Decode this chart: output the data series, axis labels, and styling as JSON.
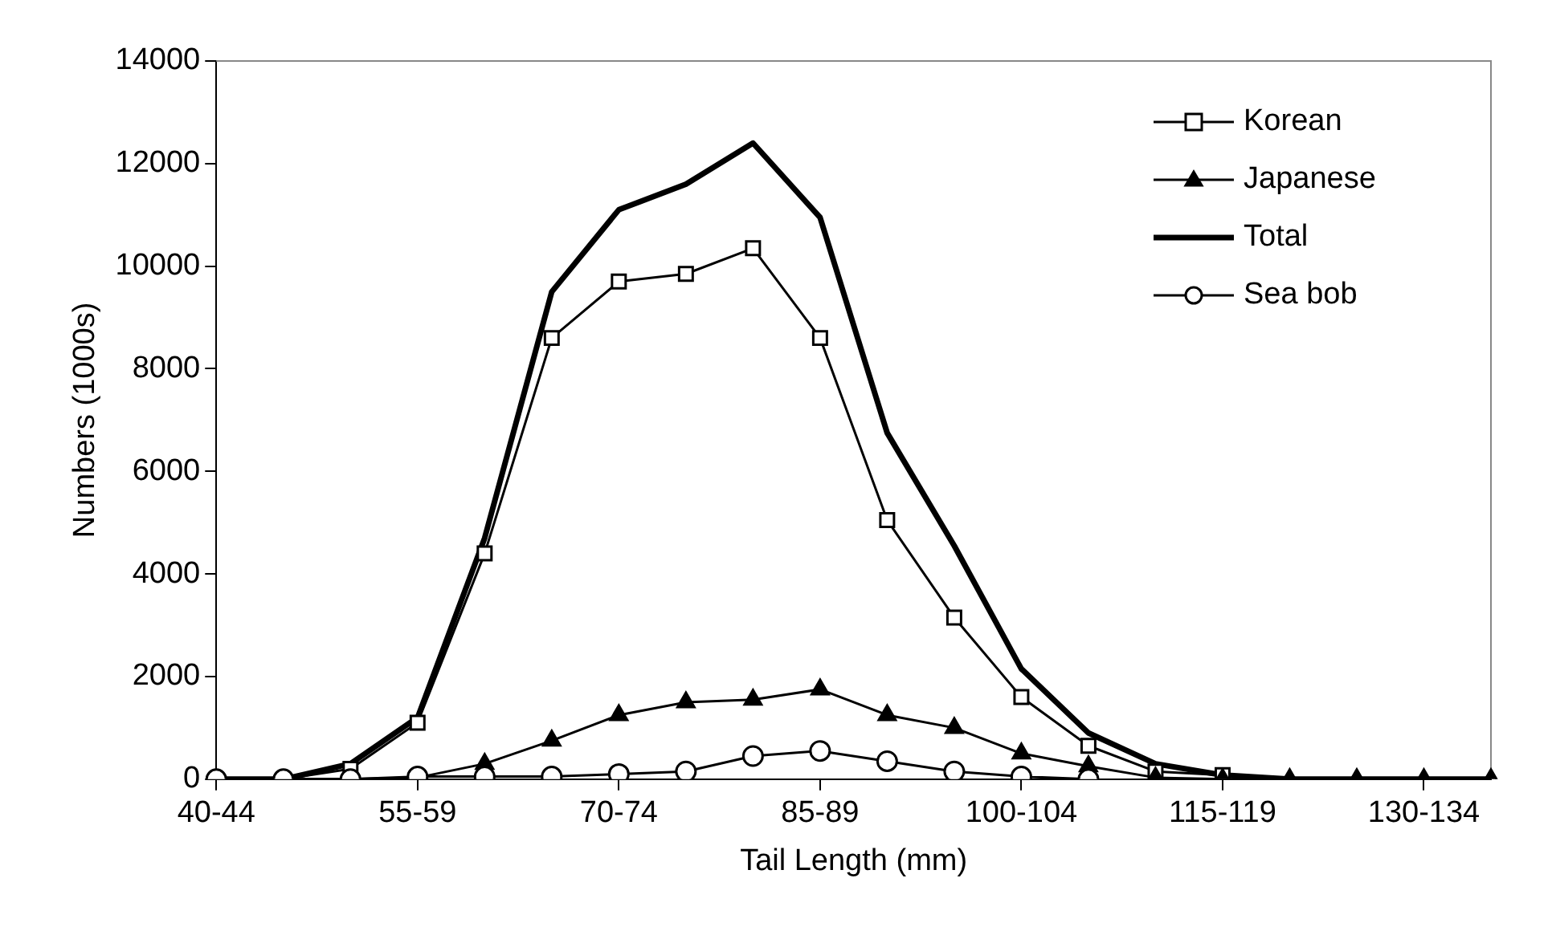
{
  "chart_data": {
    "type": "line",
    "xlabel": "Tail Length (mm)",
    "ylabel": "Numbers (1000s)",
    "categories": [
      "40-44",
      null,
      null,
      "55-59",
      null,
      null,
      "70-74",
      null,
      null,
      "85-89",
      null,
      null,
      "100-104",
      null,
      null,
      "115-119",
      null,
      null,
      "130-134",
      null
    ],
    "series": [
      {
        "name": "Korean",
        "color": "#000000",
        "marker": "square",
        "values": [
          0,
          0,
          200,
          1100,
          4400,
          8600,
          9700,
          9850,
          10350,
          8600,
          5050,
          3150,
          1600,
          650,
          150,
          80,
          0,
          0,
          0,
          0
        ]
      },
      {
        "name": "Japanese",
        "color": "#000000",
        "marker": "triangle",
        "values": [
          0,
          0,
          0,
          30,
          300,
          750,
          1250,
          1500,
          1550,
          1750,
          1250,
          1000,
          500,
          250,
          30,
          0,
          0,
          0,
          0,
          0
        ]
      },
      {
        "name": "Total",
        "color": "#000000",
        "marker": "none",
        "values": [
          0,
          0,
          300,
          1200,
          4700,
          9500,
          11100,
          11600,
          12400,
          10950,
          6750,
          4550,
          2150,
          900,
          300,
          80,
          0,
          0,
          0,
          0
        ]
      },
      {
        "name": "Sea bob",
        "color": "#000000",
        "marker": "circle",
        "values": [
          0,
          0,
          0,
          50,
          50,
          50,
          100,
          150,
          450,
          550,
          350,
          150,
          50,
          0,
          null,
          null,
          null,
          null,
          null,
          null
        ]
      }
    ],
    "ylim": [
      0,
      14000
    ],
    "yticks": [
      0,
      2000,
      4000,
      6000,
      8000,
      10000,
      12000,
      14000
    ],
    "grid": false,
    "legend": "top right"
  }
}
